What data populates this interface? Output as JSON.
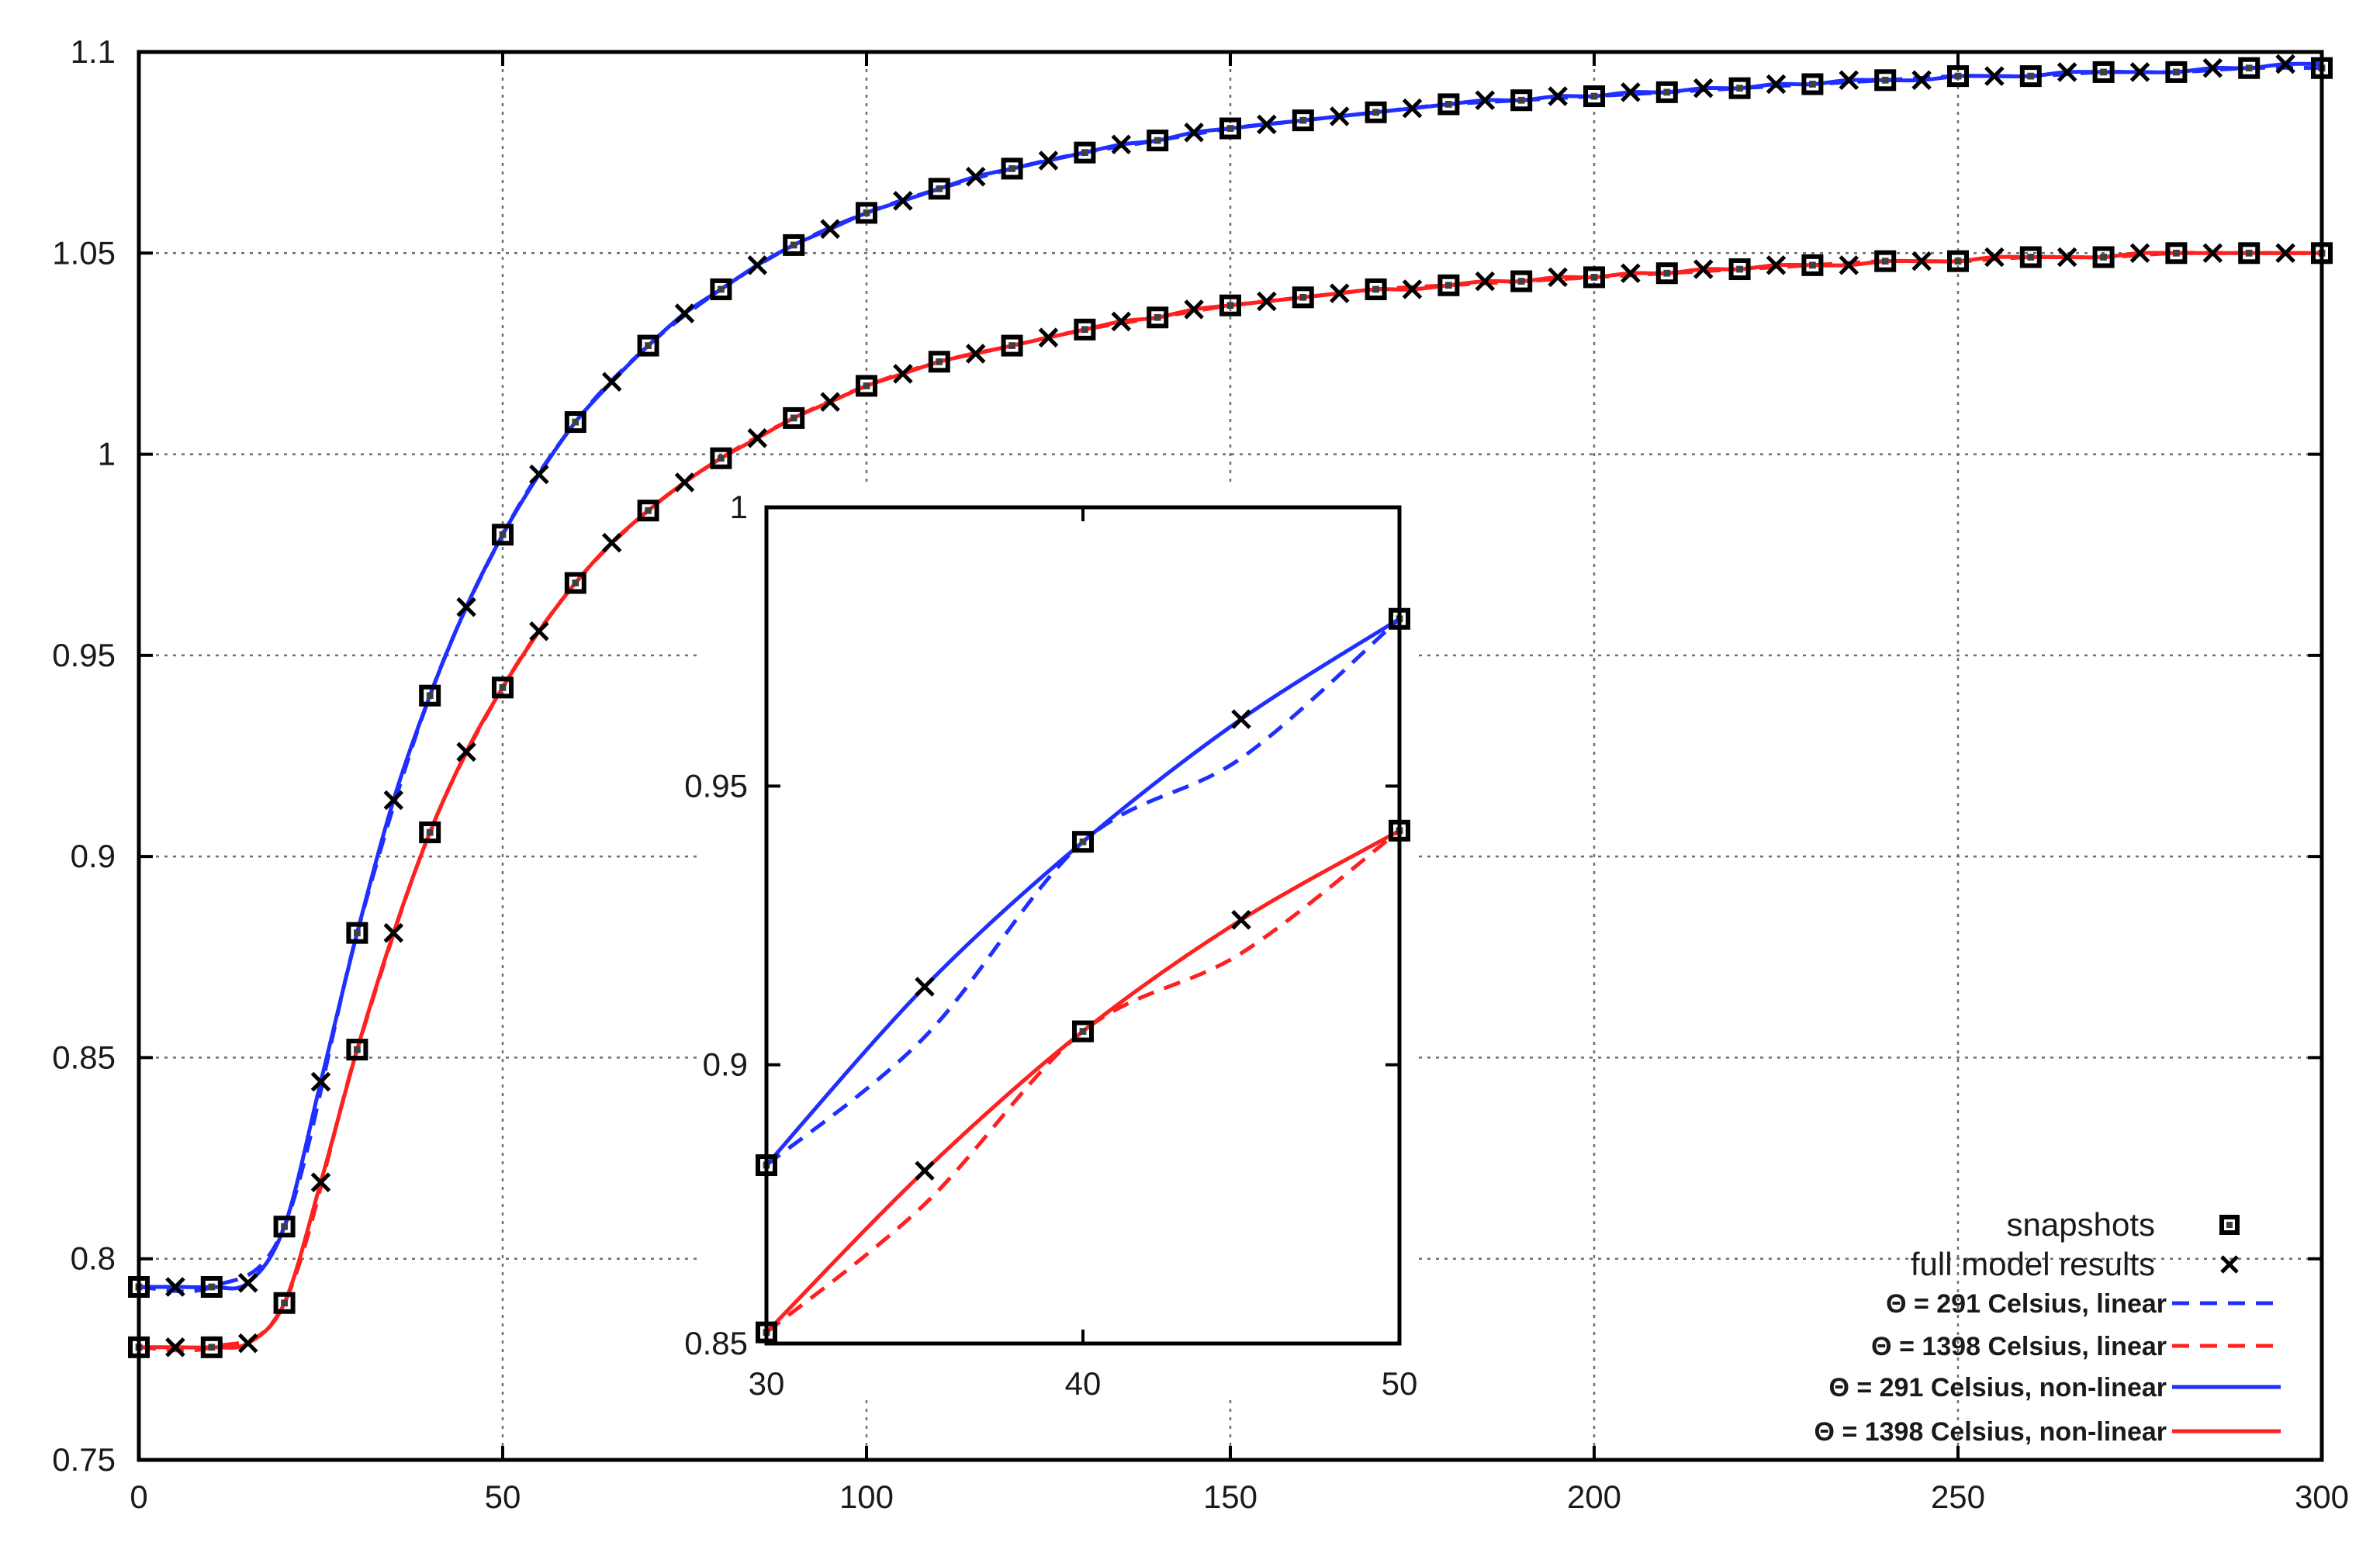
{
  "chart_data": [
    {
      "type": "line",
      "xlim": [
        0,
        300
      ],
      "ylim": [
        0.75,
        1.1
      ],
      "xticks": [
        "0",
        "50",
        "100",
        "150",
        "200",
        "250",
        "300"
      ],
      "yticks": [
        "0.75",
        "0.8",
        "0.85",
        "0.9",
        "0.95",
        "1",
        "1.05",
        "1.1"
      ],
      "grid": true,
      "legend_position": "bottom-right",
      "legend": [
        {
          "label": "snapshots",
          "marker": "square"
        },
        {
          "label": "full model results",
          "marker": "x"
        },
        {
          "label": "Θ = 291 Celsius, linear",
          "color": "#1f2fff",
          "style": "dashed"
        },
        {
          "label": "Θ = 1398 Celsius, linear",
          "color": "#ff2020",
          "style": "dashed"
        },
        {
          "label": "Θ = 291 Celsius, non-linear",
          "color": "#1f2fff",
          "style": "solid"
        },
        {
          "label": "Θ = 1398 Celsius, non-linear",
          "color": "#ff2020",
          "style": "solid"
        }
      ],
      "series": [
        {
          "color": "#1f2fff",
          "snapshots": {
            "x": [
              0,
              10,
              20,
              30,
              40,
              50,
              60,
              70,
              80,
              90,
              100,
              110,
              120,
              130,
              140,
              150,
              160,
              170,
              180,
              190,
              200,
              210,
              220,
              230,
              240,
              250,
              260,
              270,
              280,
              290,
              300
            ],
            "y": [
              0.793,
              0.793,
              0.808,
              0.881,
              0.94,
              0.98,
              1.008,
              1.027,
              1.041,
              1.052,
              1.06,
              1.066,
              1.071,
              1.075,
              1.078,
              1.081,
              1.083,
              1.085,
              1.087,
              1.088,
              1.089,
              1.09,
              1.091,
              1.092,
              1.093,
              1.094,
              1.094,
              1.095,
              1.095,
              1.096,
              1.096
            ]
          },
          "full_model": {
            "x": [
              0,
              5,
              10,
              15,
              20,
              25,
              30,
              35,
              40,
              45,
              50,
              55,
              60,
              65,
              70,
              75,
              80,
              85,
              90,
              95,
              100,
              105,
              110,
              115,
              120,
              125,
              130,
              135,
              140,
              145,
              150,
              155,
              160,
              165,
              170,
              175,
              180,
              185,
              190,
              195,
              200,
              205,
              210,
              215,
              220,
              225,
              230,
              235,
              240,
              245,
              250,
              255,
              260,
              265,
              270,
              275,
              280,
              285,
              290,
              295,
              300
            ],
            "y": [
              0.793,
              0.793,
              0.793,
              0.794,
              0.808,
              0.844,
              0.881,
              0.914,
              0.94,
              0.962,
              0.98,
              0.995,
              1.008,
              1.018,
              1.027,
              1.035,
              1.041,
              1.047,
              1.052,
              1.056,
              1.06,
              1.063,
              1.066,
              1.069,
              1.071,
              1.073,
              1.075,
              1.077,
              1.078,
              1.08,
              1.081,
              1.082,
              1.083,
              1.084,
              1.085,
              1.086,
              1.087,
              1.088,
              1.088,
              1.089,
              1.089,
              1.09,
              1.09,
              1.091,
              1.091,
              1.092,
              1.092,
              1.093,
              1.093,
              1.093,
              1.094,
              1.094,
              1.094,
              1.095,
              1.095,
              1.095,
              1.095,
              1.096,
              1.096,
              1.097,
              1.097
            ]
          }
        },
        {
          "color": "#ff2020",
          "snapshots": {
            "x": [
              0,
              10,
              20,
              30,
              40,
              50,
              60,
              70,
              80,
              90,
              100,
              110,
              120,
              130,
              140,
              150,
              160,
              170,
              180,
              190,
              200,
              210,
              220,
              230,
              240,
              250,
              260,
              270,
              280,
              290,
              300
            ],
            "y": [
              0.778,
              0.778,
              0.789,
              0.852,
              0.906,
              0.942,
              0.968,
              0.986,
              0.999,
              1.009,
              1.017,
              1.023,
              1.027,
              1.031,
              1.034,
              1.037,
              1.039,
              1.041,
              1.042,
              1.043,
              1.044,
              1.045,
              1.046,
              1.047,
              1.048,
              1.048,
              1.049,
              1.049,
              1.05,
              1.05,
              1.05
            ]
          },
          "full_model": {
            "x": [
              0,
              5,
              10,
              15,
              20,
              25,
              30,
              35,
              40,
              45,
              50,
              55,
              60,
              65,
              70,
              75,
              80,
              85,
              90,
              95,
              100,
              105,
              110,
              115,
              120,
              125,
              130,
              135,
              140,
              145,
              150,
              155,
              160,
              165,
              170,
              175,
              180,
              185,
              190,
              195,
              200,
              205,
              210,
              215,
              220,
              225,
              230,
              235,
              240,
              245,
              250,
              255,
              260,
              265,
              270,
              275,
              280,
              285,
              290,
              295,
              300
            ],
            "y": [
              0.778,
              0.778,
              0.778,
              0.779,
              0.789,
              0.819,
              0.852,
              0.881,
              0.906,
              0.926,
              0.942,
              0.956,
              0.968,
              0.978,
              0.986,
              0.993,
              0.999,
              1.004,
              1.009,
              1.013,
              1.017,
              1.02,
              1.023,
              1.025,
              1.027,
              1.029,
              1.031,
              1.033,
              1.034,
              1.036,
              1.037,
              1.038,
              1.039,
              1.04,
              1.041,
              1.041,
              1.042,
              1.043,
              1.043,
              1.044,
              1.044,
              1.045,
              1.045,
              1.046,
              1.046,
              1.047,
              1.047,
              1.047,
              1.048,
              1.048,
              1.048,
              1.049,
              1.049,
              1.049,
              1.049,
              1.05,
              1.05,
              1.05,
              1.05,
              1.05,
              1.05
            ]
          }
        }
      ]
    },
    {
      "type": "line",
      "inset": true,
      "xlim": [
        30,
        50
      ],
      "ylim": [
        0.85,
        1
      ],
      "xticks": [
        "30",
        "40",
        "50"
      ],
      "yticks": [
        "0.85",
        "0.9",
        "0.95",
        "1"
      ],
      "grid": false,
      "series": [
        {
          "color": "#1f2fff",
          "snapshots": {
            "x": [
              30,
              40,
              50
            ],
            "y": [
              0.882,
              0.94,
              0.98
            ]
          },
          "full_model": {
            "x": [
              30,
              35,
              40,
              45,
              50
            ],
            "y": [
              0.882,
              0.914,
              0.94,
              0.962,
              0.98
            ]
          },
          "linear": {
            "x": [
              30,
              35,
              40,
              45,
              50
            ],
            "y": [
              0.882,
              0.905,
              0.94,
              0.955,
              0.98
            ]
          },
          "non_linear": {
            "x": [
              30,
              35,
              40,
              45,
              50
            ],
            "y": [
              0.882,
              0.914,
              0.94,
              0.962,
              0.98
            ]
          }
        },
        {
          "color": "#ff2020",
          "snapshots": {
            "x": [
              30,
              40,
              50
            ],
            "y": [
              0.852,
              0.906,
              0.942
            ]
          },
          "full_model": {
            "x": [
              30,
              35,
              40,
              45,
              50
            ],
            "y": [
              0.852,
              0.881,
              0.906,
              0.926,
              0.942
            ]
          },
          "linear": {
            "x": [
              30,
              35,
              40,
              45,
              50
            ],
            "y": [
              0.852,
              0.875,
              0.906,
              0.92,
              0.942
            ]
          },
          "non_linear": {
            "x": [
              30,
              35,
              40,
              45,
              50
            ],
            "y": [
              0.852,
              0.881,
              0.906,
              0.926,
              0.942
            ]
          }
        }
      ]
    }
  ]
}
